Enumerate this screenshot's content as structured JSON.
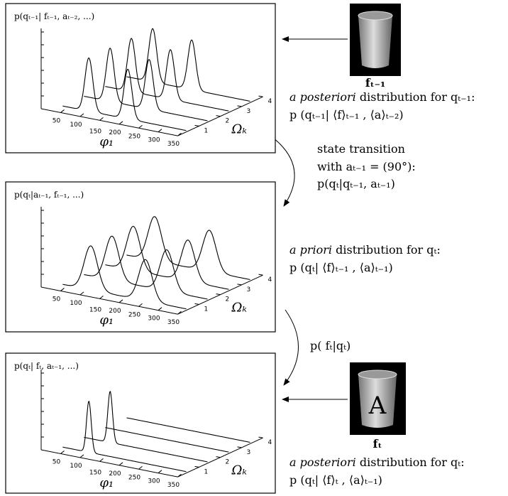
{
  "panels": [
    {
      "label": "p(qₜ₋₁| fₜ₋₁, aₜ₋₂, ...)",
      "x_ticks": [
        50,
        100,
        150,
        200,
        250,
        300,
        350
      ],
      "y_ticks": [
        1,
        2,
        3,
        4
      ],
      "x_label": "φ₁",
      "y_label": "Ωₖ"
    },
    {
      "label": "p(qₜ|aₜ₋₁, fₜ₋₁, ...)",
      "x_ticks": [
        50,
        100,
        150,
        200,
        250,
        300,
        350
      ],
      "y_ticks": [
        1,
        2,
        3,
        4
      ],
      "x_label": "φ₁",
      "y_label": "Ωₖ"
    },
    {
      "label": "p(qₜ| fₜ, aₜ₋₁, ...)",
      "x_ticks": [
        50,
        100,
        150,
        200,
        250,
        300,
        350
      ],
      "y_ticks": [
        1,
        2,
        3,
        4
      ],
      "x_label": "φ₁",
      "y_label": "Ωₖ"
    }
  ],
  "observations": [
    {
      "label": "fₜ₋₁"
    },
    {
      "label": "fₜ",
      "symbol": "A"
    }
  ],
  "captions": [
    {
      "emph": "a posteriori",
      "rest": " distribution for qₜ₋₁:",
      "formula": "p (qₜ₋₁| ⟨f⟩ₜ₋₁ , ⟨a⟩ₜ₋₂)"
    },
    {
      "emph": "a priori",
      "rest": " distribution for qₜ:",
      "formula": "p (qₜ| ⟨f⟩ₜ₋₁ , ⟨a⟩ₜ₋₁)"
    },
    {
      "emph": "a posteriori",
      "rest": " distribution for qₜ:",
      "formula": "p (qₜ| ⟨f⟩ₜ , ⟨a⟩ₜ₋₁)"
    }
  ],
  "transitions": [
    {
      "lines": [
        "state transition",
        "with aₜ₋₁ = (90°):",
        "p(qₜ|qₜ₋₁, aₜ₋₁)"
      ]
    },
    {
      "lines": [
        "p( fₜ|qₜ)"
      ]
    }
  ]
}
